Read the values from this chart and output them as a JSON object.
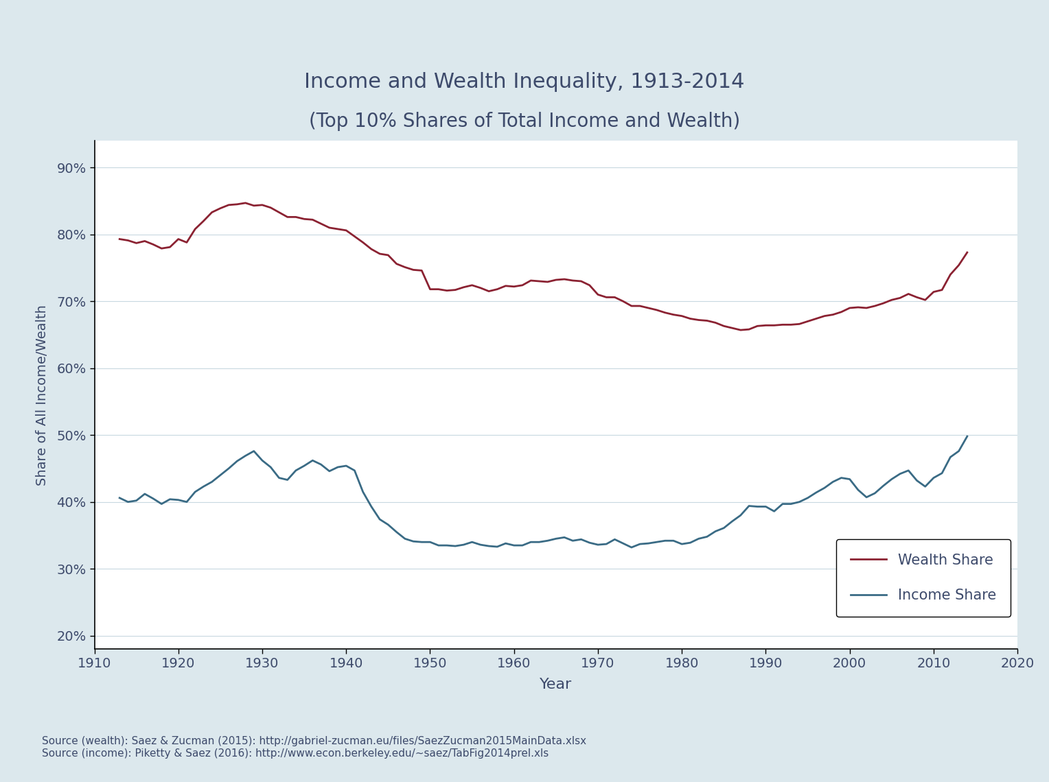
{
  "title_line1": "Income and Wealth Inequality, 1913-2014",
  "title_line2": "(Top 10% Shares of Total Income and Wealth)",
  "xlabel": "Year",
  "ylabel": "Share of All Income/Wealth",
  "bg_color": "#dce8ed",
  "plot_bg_color": "#ffffff",
  "title_color": "#3d4a6b",
  "axis_color": "#3d4a6b",
  "source_text": "Source (wealth): Saez & Zucman (2015): http://gabriel-zucman.eu/files/SaezZucman2015MainData.xlsx\nSource (income): Piketty & Saez (2016): http://www.econ.berkeley.edu/~saez/TabFig2014prel.xls",
  "wealth_color": "#8b2232",
  "income_color": "#3a6b85",
  "xlim": [
    1910,
    2020
  ],
  "ylim": [
    0.18,
    0.94
  ],
  "yticks": [
    0.2,
    0.3,
    0.4,
    0.5,
    0.6,
    0.7,
    0.8,
    0.9
  ],
  "xticks": [
    1910,
    1920,
    1930,
    1940,
    1950,
    1960,
    1970,
    1980,
    1990,
    2000,
    2010,
    2020
  ],
  "wealth_data": [
    [
      1913,
      0.793
    ],
    [
      1914,
      0.791
    ],
    [
      1915,
      0.787
    ],
    [
      1916,
      0.79
    ],
    [
      1917,
      0.785
    ],
    [
      1918,
      0.779
    ],
    [
      1919,
      0.781
    ],
    [
      1920,
      0.793
    ],
    [
      1921,
      0.788
    ],
    [
      1922,
      0.808
    ],
    [
      1923,
      0.82
    ],
    [
      1924,
      0.833
    ],
    [
      1925,
      0.839
    ],
    [
      1926,
      0.844
    ],
    [
      1927,
      0.845
    ],
    [
      1928,
      0.847
    ],
    [
      1929,
      0.843
    ],
    [
      1930,
      0.844
    ],
    [
      1931,
      0.84
    ],
    [
      1932,
      0.833
    ],
    [
      1933,
      0.826
    ],
    [
      1934,
      0.826
    ],
    [
      1935,
      0.823
    ],
    [
      1936,
      0.822
    ],
    [
      1937,
      0.816
    ],
    [
      1938,
      0.81
    ],
    [
      1939,
      0.808
    ],
    [
      1940,
      0.806
    ],
    [
      1941,
      0.797
    ],
    [
      1942,
      0.788
    ],
    [
      1943,
      0.778
    ],
    [
      1944,
      0.771
    ],
    [
      1945,
      0.769
    ],
    [
      1946,
      0.756
    ],
    [
      1947,
      0.751
    ],
    [
      1948,
      0.747
    ],
    [
      1949,
      0.746
    ],
    [
      1950,
      0.718
    ],
    [
      1951,
      0.718
    ],
    [
      1952,
      0.716
    ],
    [
      1953,
      0.717
    ],
    [
      1954,
      0.721
    ],
    [
      1955,
      0.724
    ],
    [
      1956,
      0.72
    ],
    [
      1957,
      0.715
    ],
    [
      1958,
      0.718
    ],
    [
      1959,
      0.723
    ],
    [
      1960,
      0.722
    ],
    [
      1961,
      0.724
    ],
    [
      1962,
      0.731
    ],
    [
      1963,
      0.73
    ],
    [
      1964,
      0.729
    ],
    [
      1965,
      0.732
    ],
    [
      1966,
      0.733
    ],
    [
      1967,
      0.731
    ],
    [
      1968,
      0.73
    ],
    [
      1969,
      0.724
    ],
    [
      1970,
      0.71
    ],
    [
      1971,
      0.706
    ],
    [
      1972,
      0.706
    ],
    [
      1973,
      0.7
    ],
    [
      1974,
      0.693
    ],
    [
      1975,
      0.693
    ],
    [
      1976,
      0.69
    ],
    [
      1977,
      0.687
    ],
    [
      1978,
      0.683
    ],
    [
      1979,
      0.68
    ],
    [
      1980,
      0.678
    ],
    [
      1981,
      0.674
    ],
    [
      1982,
      0.672
    ],
    [
      1983,
      0.671
    ],
    [
      1984,
      0.668
    ],
    [
      1985,
      0.663
    ],
    [
      1986,
      0.66
    ],
    [
      1987,
      0.657
    ],
    [
      1988,
      0.658
    ],
    [
      1989,
      0.663
    ],
    [
      1990,
      0.664
    ],
    [
      1991,
      0.664
    ],
    [
      1992,
      0.665
    ],
    [
      1993,
      0.665
    ],
    [
      1994,
      0.666
    ],
    [
      1995,
      0.67
    ],
    [
      1996,
      0.674
    ],
    [
      1997,
      0.678
    ],
    [
      1998,
      0.68
    ],
    [
      1999,
      0.684
    ],
    [
      2000,
      0.69
    ],
    [
      2001,
      0.691
    ],
    [
      2002,
      0.69
    ],
    [
      2003,
      0.693
    ],
    [
      2004,
      0.697
    ],
    [
      2005,
      0.702
    ],
    [
      2006,
      0.705
    ],
    [
      2007,
      0.711
    ],
    [
      2008,
      0.706
    ],
    [
      2009,
      0.702
    ],
    [
      2010,
      0.714
    ],
    [
      2011,
      0.717
    ],
    [
      2012,
      0.74
    ],
    [
      2013,
      0.754
    ],
    [
      2014,
      0.773
    ]
  ],
  "income_data": [
    [
      1913,
      0.406
    ],
    [
      1914,
      0.4
    ],
    [
      1915,
      0.402
    ],
    [
      1916,
      0.412
    ],
    [
      1917,
      0.405
    ],
    [
      1918,
      0.397
    ],
    [
      1919,
      0.404
    ],
    [
      1920,
      0.403
    ],
    [
      1921,
      0.4
    ],
    [
      1922,
      0.415
    ],
    [
      1923,
      0.423
    ],
    [
      1924,
      0.43
    ],
    [
      1925,
      0.44
    ],
    [
      1926,
      0.45
    ],
    [
      1927,
      0.461
    ],
    [
      1928,
      0.469
    ],
    [
      1929,
      0.476
    ],
    [
      1930,
      0.462
    ],
    [
      1931,
      0.452
    ],
    [
      1932,
      0.436
    ],
    [
      1933,
      0.433
    ],
    [
      1934,
      0.447
    ],
    [
      1935,
      0.454
    ],
    [
      1936,
      0.462
    ],
    [
      1937,
      0.456
    ],
    [
      1938,
      0.446
    ],
    [
      1939,
      0.452
    ],
    [
      1940,
      0.454
    ],
    [
      1941,
      0.447
    ],
    [
      1942,
      0.415
    ],
    [
      1943,
      0.393
    ],
    [
      1944,
      0.374
    ],
    [
      1945,
      0.366
    ],
    [
      1946,
      0.355
    ],
    [
      1947,
      0.345
    ],
    [
      1948,
      0.341
    ],
    [
      1949,
      0.34
    ],
    [
      1950,
      0.34
    ],
    [
      1951,
      0.335
    ],
    [
      1952,
      0.335
    ],
    [
      1953,
      0.334
    ],
    [
      1954,
      0.336
    ],
    [
      1955,
      0.34
    ],
    [
      1956,
      0.336
    ],
    [
      1957,
      0.334
    ],
    [
      1958,
      0.333
    ],
    [
      1959,
      0.338
    ],
    [
      1960,
      0.335
    ],
    [
      1961,
      0.335
    ],
    [
      1962,
      0.34
    ],
    [
      1963,
      0.34
    ],
    [
      1964,
      0.342
    ],
    [
      1965,
      0.345
    ],
    [
      1966,
      0.347
    ],
    [
      1967,
      0.342
    ],
    [
      1968,
      0.344
    ],
    [
      1969,
      0.339
    ],
    [
      1970,
      0.336
    ],
    [
      1971,
      0.337
    ],
    [
      1972,
      0.344
    ],
    [
      1973,
      0.338
    ],
    [
      1974,
      0.332
    ],
    [
      1975,
      0.337
    ],
    [
      1976,
      0.338
    ],
    [
      1977,
      0.34
    ],
    [
      1978,
      0.342
    ],
    [
      1979,
      0.342
    ],
    [
      1980,
      0.337
    ],
    [
      1981,
      0.339
    ],
    [
      1982,
      0.345
    ],
    [
      1983,
      0.348
    ],
    [
      1984,
      0.356
    ],
    [
      1985,
      0.361
    ],
    [
      1986,
      0.371
    ],
    [
      1987,
      0.38
    ],
    [
      1988,
      0.394
    ],
    [
      1989,
      0.393
    ],
    [
      1990,
      0.393
    ],
    [
      1991,
      0.386
    ],
    [
      1992,
      0.397
    ],
    [
      1993,
      0.397
    ],
    [
      1994,
      0.4
    ],
    [
      1995,
      0.406
    ],
    [
      1996,
      0.414
    ],
    [
      1997,
      0.421
    ],
    [
      1998,
      0.43
    ],
    [
      1999,
      0.436
    ],
    [
      2000,
      0.434
    ],
    [
      2001,
      0.418
    ],
    [
      2002,
      0.407
    ],
    [
      2003,
      0.413
    ],
    [
      2004,
      0.424
    ],
    [
      2005,
      0.434
    ],
    [
      2006,
      0.442
    ],
    [
      2007,
      0.447
    ],
    [
      2008,
      0.432
    ],
    [
      2009,
      0.423
    ],
    [
      2010,
      0.436
    ],
    [
      2011,
      0.443
    ],
    [
      2012,
      0.467
    ],
    [
      2013,
      0.476
    ],
    [
      2014,
      0.498
    ]
  ]
}
